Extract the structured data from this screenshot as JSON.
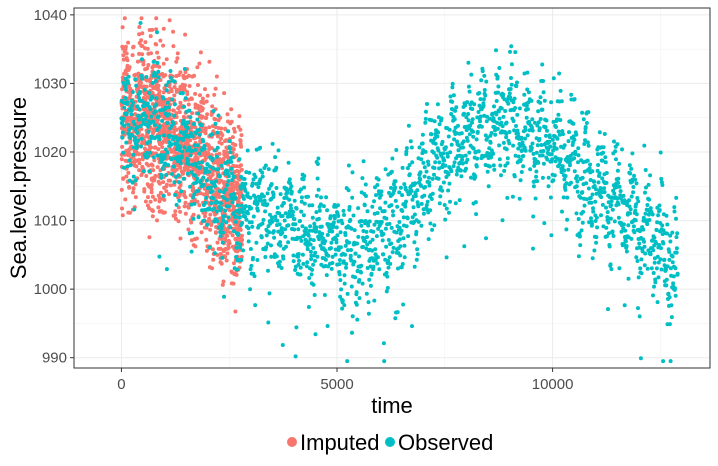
{
  "chart_data": {
    "type": "scatter",
    "title": "",
    "xlabel": "time",
    "ylabel": "Sea.level.pressure",
    "xlim": [
      -1100,
      13650
    ],
    "ylim": [
      988.5,
      1041
    ],
    "xticks": [
      0,
      5000,
      10000
    ],
    "yticks": [
      990,
      1000,
      1010,
      1020,
      1030,
      1040
    ],
    "xtick_labels": [
      "0",
      "5000",
      "10000"
    ],
    "ytick_labels": [
      "990",
      "1000",
      "1010",
      "1020",
      "1030",
      "1040"
    ],
    "grid": true,
    "legend": {
      "position": "bottom"
    },
    "series": [
      {
        "name": "Imputed",
        "color": "#F8766D",
        "x_range": [
          0,
          2800
        ],
        "trend": [
          [
            0,
            1024
          ],
          [
            500,
            1024.5
          ],
          [
            1000,
            1023.5
          ],
          [
            1500,
            1021
          ],
          [
            2000,
            1018
          ],
          [
            2500,
            1014
          ],
          [
            2800,
            1012
          ]
        ],
        "spread": 6
      },
      {
        "name": "Observed",
        "color": "#00BFC4",
        "x_range": [
          0,
          12900
        ],
        "trend": [
          [
            0,
            1023
          ],
          [
            500,
            1025
          ],
          [
            1000,
            1024
          ],
          [
            1500,
            1021
          ],
          [
            2000,
            1016
          ],
          [
            2800,
            1012
          ],
          [
            3500,
            1011
          ],
          [
            4500,
            1008
          ],
          [
            5500,
            1006
          ],
          [
            6500,
            1011
          ],
          [
            7500,
            1020
          ],
          [
            8500,
            1024
          ],
          [
            9000,
            1025
          ],
          [
            9500,
            1023
          ],
          [
            10500,
            1019
          ],
          [
            11500,
            1012
          ],
          [
            12500,
            1006
          ],
          [
            12900,
            1004
          ]
        ],
        "spread": 4
      }
    ]
  }
}
